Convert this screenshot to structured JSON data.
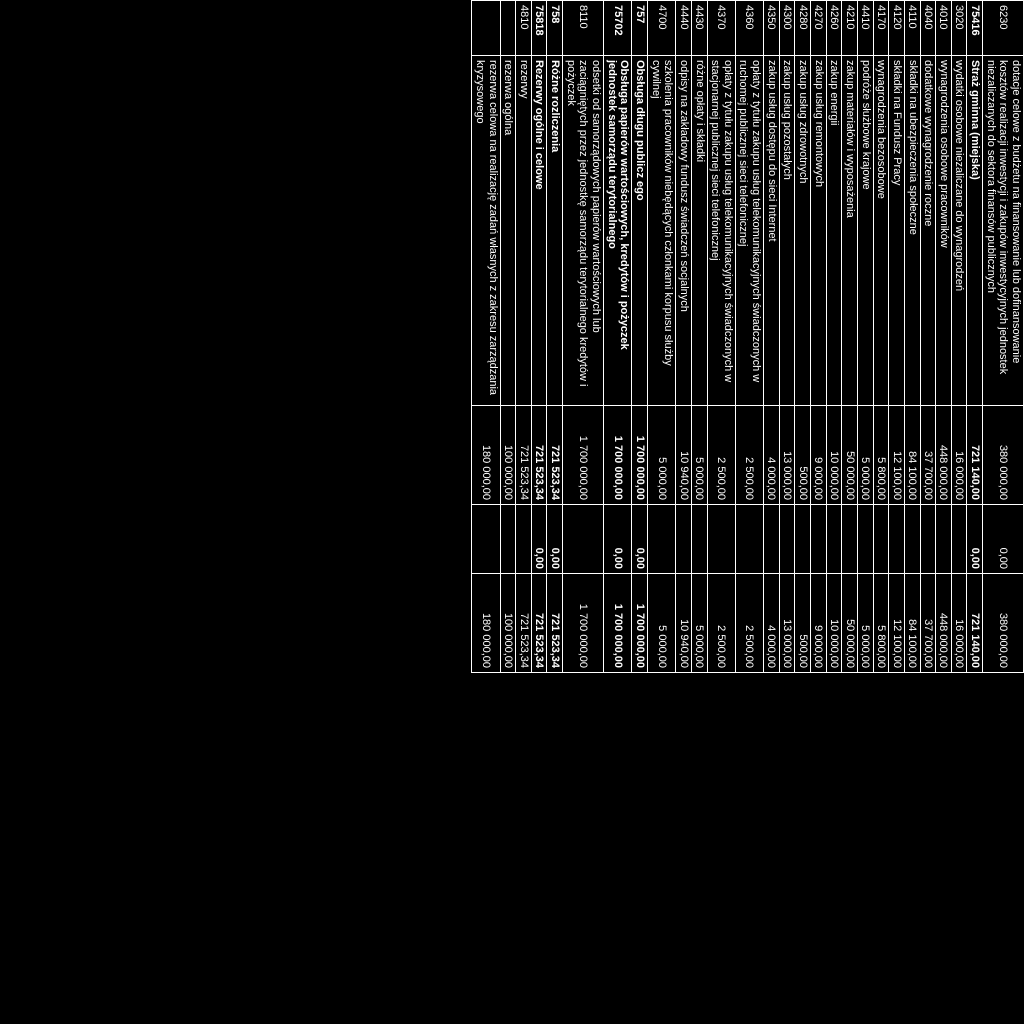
{
  "rows": [
    {
      "code": "6230",
      "desc": "dotacje celowe z budżetu na finansowanie lub dofinansowanie kosztów realizacji inwestycji i zakupów inwestycyjnych jednostek niezaliczanych do sektora finansów publicznych",
      "v1": "380 000,00",
      "v2": "0,00",
      "v3": "380 000,00",
      "bold": false
    },
    {
      "code": "75416",
      "desc": "Straż gminna (miejska)",
      "v1": "721 140,00",
      "v2": "0,00",
      "v3": "721 140,00",
      "bold": true
    },
    {
      "code": "3020",
      "desc": "wydatki osobowe niezaliczane do wynagrodzeń",
      "v1": "16 000,00",
      "v2": "",
      "v3": "16 000,00",
      "bold": false
    },
    {
      "code": "4010",
      "desc": "wynagrodzenia osobowe pracowników",
      "v1": "448 000,00",
      "v2": "",
      "v3": "448 000,00",
      "bold": false
    },
    {
      "code": "4040",
      "desc": "dodatkowe wynagrodzenie roczne",
      "v1": "37 700,00",
      "v2": "",
      "v3": "37 700,00",
      "bold": false
    },
    {
      "code": "4110",
      "desc": "składki na ubezpieczenia społeczne",
      "v1": "84 100,00",
      "v2": "",
      "v3": "84 100,00",
      "bold": false
    },
    {
      "code": "4120",
      "desc": "składki na Fundusz Pracy",
      "v1": "12 100,00",
      "v2": "",
      "v3": "12 100,00",
      "bold": false
    },
    {
      "code": "4170",
      "desc": "wynagrodzenia bezosobowe",
      "v1": "5 800,00",
      "v2": "",
      "v3": "5 800,00",
      "bold": false
    },
    {
      "code": "4410",
      "desc": "podróże służbowe krajowe",
      "v1": "5 000,00",
      "v2": "",
      "v3": "5 000,00",
      "bold": false
    },
    {
      "code": "4210",
      "desc": "zakup materiałów i wyposażenia",
      "v1": "50 000,00",
      "v2": "",
      "v3": "50 000,00",
      "bold": false
    },
    {
      "code": "4260",
      "desc": "zakup energii",
      "v1": "10 000,00",
      "v2": "",
      "v3": "10 000,00",
      "bold": false
    },
    {
      "code": "4270",
      "desc": "zakup usług remontowych",
      "v1": "9 000,00",
      "v2": "",
      "v3": "9 000,00",
      "bold": false
    },
    {
      "code": "4280",
      "desc": "zakup usług zdrowotnych",
      "v1": "500,00",
      "v2": "",
      "v3": "500,00",
      "bold": false
    },
    {
      "code": "4300",
      "desc": "zakup usług pozostałych",
      "v1": "13 000,00",
      "v2": "",
      "v3": "13 000,00",
      "bold": false
    },
    {
      "code": "4350",
      "desc": "zakup usług dostępu do sieci Internet",
      "v1": "4 000,00",
      "v2": "",
      "v3": "4 000,00",
      "bold": false
    },
    {
      "code": "4360",
      "desc": "opłaty z tytułu zakupu usług telekomunikacyjnych świadczonych w ruchomej publicznej sieci telefonicznej",
      "v1": "2 500,00",
      "v2": "",
      "v3": "2 500,00",
      "bold": false
    },
    {
      "code": "4370",
      "desc": "opłaty z tytułu zakupu usług telekomunikacyjnych świadczonych w stacjonarnej publicznej sieci telefonicznej",
      "v1": "2 500,00",
      "v2": "",
      "v3": "2 500,00",
      "bold": false
    },
    {
      "code": "4430",
      "desc": "różne opłaty i składki",
      "v1": "5 000,00",
      "v2": "",
      "v3": "5 000,00",
      "bold": false
    },
    {
      "code": "4440",
      "desc": "odpisy na zakładowy fundusz świadczeń socjalnych",
      "v1": "10 940,00",
      "v2": "",
      "v3": "10 940,00",
      "bold": false
    },
    {
      "code": "4700",
      "desc": "szkolenia pracowników niebędących członkami korpusu służby cywilnej",
      "v1": "5 000,00",
      "v2": "",
      "v3": "5 000,00",
      "bold": false
    },
    {
      "code": "757",
      "desc": "Obsługa długu publicz ego",
      "v1": "1 700 000,00",
      "v2": "0,00",
      "v3": "1 700 000,00",
      "bold": true
    },
    {
      "code": "75702",
      "desc": "Obsługa papierów wartościowych, kredytów i pożyczek jednostek samorządu terytorialnego",
      "v1": "1 700 000,00",
      "v2": "0,00",
      "v3": "1 700 000,00",
      "bold": true
    },
    {
      "code": "8110",
      "desc": "odsetki od samorządowych papierów wartościowych lub zaciągniętych przez jednostkę samorządu terytorialnego kredytów i pożyczek",
      "v1": "1 700 000,00",
      "v2": "",
      "v3": "1 700 000,00",
      "bold": false
    },
    {
      "code": "758",
      "desc": "Różne rozliczenia",
      "v1": "721 523,34",
      "v2": "0,00",
      "v3": "721 523,34",
      "bold": true
    },
    {
      "code": "75818",
      "desc": "Rezerwy ogólne i celowe",
      "v1": "721 523,34",
      "v2": "0,00",
      "v3": "721 523,34",
      "bold": true
    },
    {
      "code": "4810",
      "desc": "rezerwy",
      "v1": "721 523,34",
      "v2": "",
      "v3": "721 523,34",
      "bold": false
    },
    {
      "code": "",
      "desc": "rezerwa ogólna",
      "v1": "100 000,00",
      "v2": "",
      "v3": "100 000,00",
      "bold": false
    },
    {
      "code": "",
      "desc": "rezerwa celowa na realizację zadań własnych z zakresu zarządzania kryzysowego",
      "v1": "180 000,00",
      "v2": "",
      "v3": "180 000,00",
      "bold": false
    }
  ]
}
